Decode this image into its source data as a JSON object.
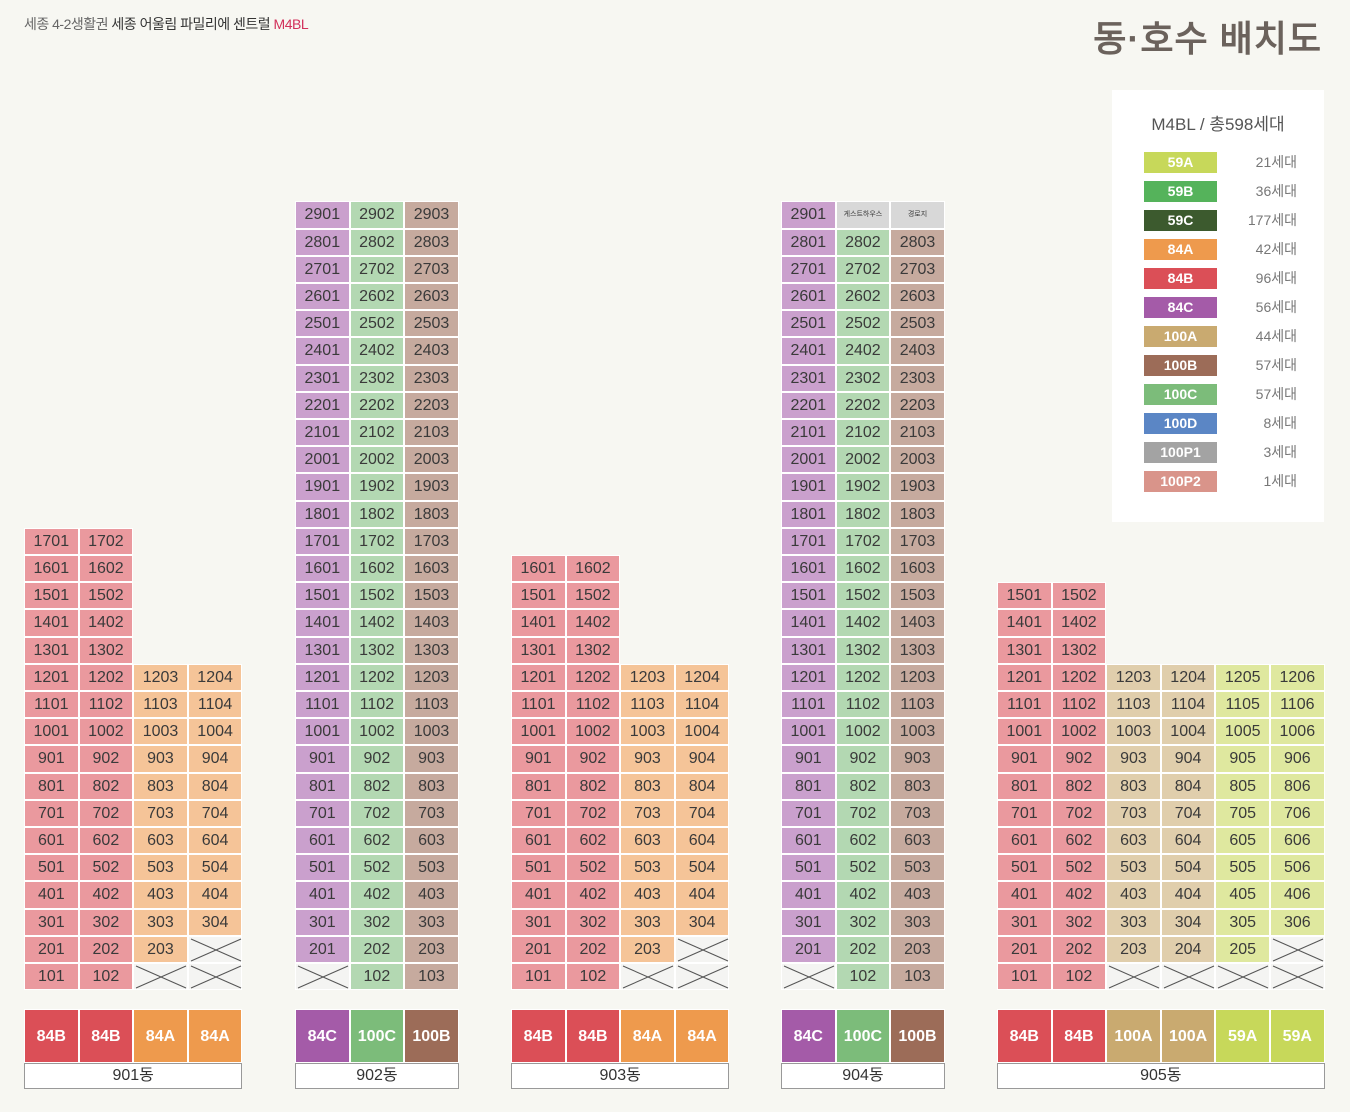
{
  "header": {
    "subtitle_a": "세종 4-2생활권",
    "subtitle_b": "세종 어울림 파밀리에 센트럴",
    "subtitle_code": "M4BL",
    "title": "동·호수 배치도"
  },
  "colors": {
    "59A": "#c7d85a",
    "59B": "#55b35b",
    "59C": "#3c5a2e",
    "84A": "#ee9a4d",
    "84B": "#db4f57",
    "84C": "#a45ba8",
    "100A": "#c9aa70",
    "100B": "#9c6c58",
    "100C": "#7cbc7a",
    "100D": "#5b86c5",
    "100P1": "#a3a3a3",
    "100P2": "#d9948a"
  },
  "legend": {
    "title": "M4BL / 총598세대",
    "items": [
      {
        "type": "59A",
        "count": "21세대"
      },
      {
        "type": "59B",
        "count": "36세대"
      },
      {
        "type": "59C",
        "count": "177세대"
      },
      {
        "type": "84A",
        "count": "42세대"
      },
      {
        "type": "84B",
        "count": "96세대"
      },
      {
        "type": "84C",
        "count": "56세대"
      },
      {
        "type": "100A",
        "count": "44세대"
      },
      {
        "type": "100B",
        "count": "57세대"
      },
      {
        "type": "100C",
        "count": "57세대"
      },
      {
        "type": "100D",
        "count": "8세대"
      },
      {
        "type": "100P1",
        "count": "3세대"
      },
      {
        "type": "100P2",
        "count": "1세대"
      }
    ]
  },
  "buildings": [
    {
      "name": "901동",
      "lines": [
        {
          "type": "84B",
          "top_floor": 17
        },
        {
          "type": "84B",
          "top_floor": 17
        },
        {
          "type": "84A",
          "top_floor": 12,
          "empty_floors": [
            1
          ]
        },
        {
          "type": "84A",
          "top_floor": 12,
          "empty_floors": [
            1,
            2
          ]
        }
      ],
      "special_units": []
    },
    {
      "name": "902동",
      "lines": [
        {
          "type": "84C",
          "top_floor": 29,
          "empty_floors": [
            1
          ]
        },
        {
          "type": "100C",
          "top_floor": 29
        },
        {
          "type": "100B",
          "top_floor": 29
        }
      ],
      "special_units": []
    },
    {
      "name": "903동",
      "lines": [
        {
          "type": "84B",
          "top_floor": 16
        },
        {
          "type": "84B",
          "top_floor": 16
        },
        {
          "type": "84A",
          "top_floor": 12,
          "empty_floors": [
            1
          ]
        },
        {
          "type": "84A",
          "top_floor": 12,
          "empty_floors": [
            1,
            2
          ]
        }
      ],
      "special_units": []
    },
    {
      "name": "904동",
      "lines": [
        {
          "type": "84C",
          "top_floor": 29,
          "empty_floors": [
            1
          ]
        },
        {
          "type": "100C",
          "top_floor": 29
        },
        {
          "type": "100B",
          "top_floor": 29
        }
      ],
      "special_units": [
        {
          "line": 1,
          "floor": 29,
          "label": "게스트하우스"
        },
        {
          "line": 2,
          "floor": 29,
          "label": "경로지"
        }
      ]
    },
    {
      "name": "905동",
      "lines": [
        {
          "type": "84B",
          "top_floor": 15
        },
        {
          "type": "84B",
          "top_floor": 15
        },
        {
          "type": "100A",
          "top_floor": 12,
          "empty_floors": [
            1
          ]
        },
        {
          "type": "100A",
          "top_floor": 12,
          "empty_floors": [
            1
          ]
        },
        {
          "type": "59A",
          "top_floor": 12,
          "empty_floors": [
            1
          ]
        },
        {
          "type": "59A",
          "top_floor": 12,
          "empty_floors": [
            1,
            2
          ]
        }
      ],
      "special_units": []
    }
  ]
}
